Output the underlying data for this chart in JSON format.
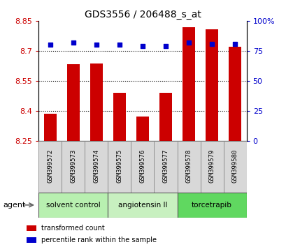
{
  "title": "GDS3556 / 206488_s_at",
  "samples": [
    "GSM399572",
    "GSM399573",
    "GSM399574",
    "GSM399575",
    "GSM399576",
    "GSM399577",
    "GSM399578",
    "GSM399579",
    "GSM399580"
  ],
  "red_values": [
    8.385,
    8.635,
    8.638,
    8.49,
    8.37,
    8.49,
    8.82,
    8.81,
    8.72
  ],
  "blue_percentiles": [
    80,
    82,
    80,
    80,
    79,
    79,
    82,
    81,
    81
  ],
  "y_min": 8.25,
  "y_max": 8.85,
  "y_ticks_left": [
    8.25,
    8.4,
    8.55,
    8.7,
    8.85
  ],
  "y_ticks_right": [
    0,
    25,
    50,
    75,
    100
  ],
  "groups": [
    {
      "label": "solvent control",
      "indices": [
        0,
        1,
        2
      ],
      "color": "#b8f0b0"
    },
    {
      "label": "angiotensin II",
      "indices": [
        3,
        4,
        5
      ],
      "color": "#c8f0c0"
    },
    {
      "label": "torcetrapib",
      "indices": [
        6,
        7,
        8
      ],
      "color": "#60d860"
    }
  ],
  "bar_color": "#cc0000",
  "dot_color": "#0000cc",
  "bg_color": "#ffffff",
  "sample_box_color": "#d8d8d8",
  "axis_left_color": "#cc0000",
  "axis_right_color": "#0000cc",
  "grid_yticks": [
    8.4,
    8.55,
    8.7
  ]
}
